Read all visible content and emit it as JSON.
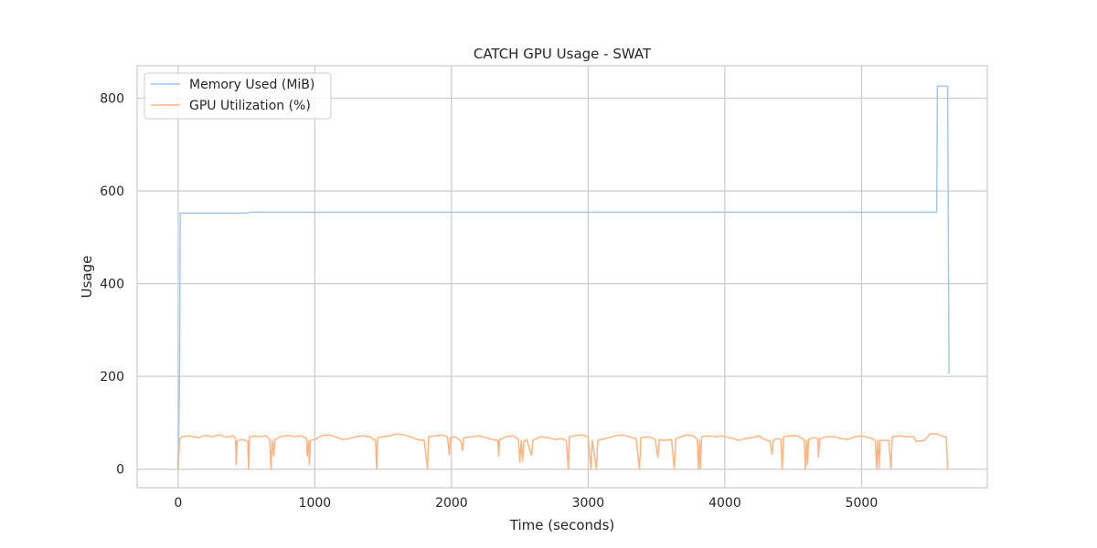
{
  "chart_data": {
    "type": "line",
    "title": "CATCH GPU Usage - SWAT",
    "xlabel": "Time (seconds)",
    "ylabel": "Usage",
    "xlim": [
      -300,
      5920
    ],
    "ylim": [
      -40,
      870
    ],
    "xticks": [
      0,
      1000,
      2000,
      3000,
      4000,
      5000
    ],
    "yticks": [
      0,
      200,
      400,
      600,
      800
    ],
    "grid": true,
    "legend_position": "top-left",
    "series": [
      {
        "name": "Memory Used (MiB)",
        "color": "#a1c9f4",
        "points": [
          [
            0,
            0
          ],
          [
            10,
            200
          ],
          [
            15,
            552
          ],
          [
            500,
            552
          ],
          [
            520,
            554
          ],
          [
            5550,
            554
          ],
          [
            5555,
            826
          ],
          [
            5630,
            826
          ],
          [
            5640,
            206
          ]
        ]
      },
      {
        "name": "GPU Utilization (%)",
        "color": "#ffb482",
        "points": [
          [
            0,
            0
          ],
          [
            10,
            65
          ],
          [
            30,
            70
          ],
          [
            80,
            72
          ],
          [
            150,
            68
          ],
          [
            200,
            73
          ],
          [
            250,
            70
          ],
          [
            300,
            74
          ],
          [
            350,
            69
          ],
          [
            400,
            72
          ],
          [
            420,
            66
          ],
          [
            425,
            10
          ],
          [
            432,
            60
          ],
          [
            440,
            62
          ],
          [
            470,
            64
          ],
          [
            490,
            62
          ],
          [
            510,
            60
          ],
          [
            515,
            0
          ],
          [
            522,
            70
          ],
          [
            560,
            72
          ],
          [
            600,
            70
          ],
          [
            640,
            72
          ],
          [
            670,
            65
          ],
          [
            680,
            0
          ],
          [
            688,
            62
          ],
          [
            700,
            28
          ],
          [
            708,
            64
          ],
          [
            750,
            70
          ],
          [
            800,
            73
          ],
          [
            850,
            70
          ],
          [
            900,
            72
          ],
          [
            940,
            66
          ],
          [
            945,
            28
          ],
          [
            955,
            62
          ],
          [
            960,
            10
          ],
          [
            968,
            62
          ],
          [
            1000,
            64
          ],
          [
            1050,
            72
          ],
          [
            1100,
            74
          ],
          [
            1150,
            70
          ],
          [
            1200,
            64
          ],
          [
            1250,
            66
          ],
          [
            1300,
            70
          ],
          [
            1350,
            72
          ],
          [
            1400,
            70
          ],
          [
            1445,
            62
          ],
          [
            1452,
            0
          ],
          [
            1460,
            68
          ],
          [
            1500,
            70
          ],
          [
            1550,
            72
          ],
          [
            1600,
            76
          ],
          [
            1650,
            74
          ],
          [
            1700,
            70
          ],
          [
            1750,
            64
          ],
          [
            1800,
            62
          ],
          [
            1825,
            0
          ],
          [
            1832,
            70
          ],
          [
            1880,
            72
          ],
          [
            1930,
            74
          ],
          [
            1970,
            70
          ],
          [
            1985,
            30
          ],
          [
            1992,
            68
          ],
          [
            2030,
            70
          ],
          [
            2070,
            60
          ],
          [
            2080,
            40
          ],
          [
            2090,
            68
          ],
          [
            2150,
            70
          ],
          [
            2200,
            72
          ],
          [
            2250,
            68
          ],
          [
            2300,
            64
          ],
          [
            2340,
            62
          ],
          [
            2345,
            28
          ],
          [
            2352,
            64
          ],
          [
            2400,
            70
          ],
          [
            2450,
            72
          ],
          [
            2490,
            64
          ],
          [
            2500,
            15
          ],
          [
            2510,
            62
          ],
          [
            2520,
            18
          ],
          [
            2530,
            60
          ],
          [
            2550,
            64
          ],
          [
            2585,
            30
          ],
          [
            2595,
            62
          ],
          [
            2650,
            70
          ],
          [
            2700,
            68
          ],
          [
            2760,
            64
          ],
          [
            2800,
            66
          ],
          [
            2840,
            62
          ],
          [
            2855,
            0
          ],
          [
            2862,
            70
          ],
          [
            2900,
            72
          ],
          [
            2950,
            74
          ],
          [
            3000,
            70
          ],
          [
            3020,
            0
          ],
          [
            3030,
            62
          ],
          [
            3060,
            0
          ],
          [
            3070,
            62
          ],
          [
            3150,
            68
          ],
          [
            3200,
            72
          ],
          [
            3250,
            74
          ],
          [
            3300,
            70
          ],
          [
            3350,
            66
          ],
          [
            3375,
            0
          ],
          [
            3385,
            68
          ],
          [
            3440,
            70
          ],
          [
            3490,
            64
          ],
          [
            3510,
            25
          ],
          [
            3520,
            64
          ],
          [
            3560,
            62
          ],
          [
            3610,
            64
          ],
          [
            3630,
            0
          ],
          [
            3640,
            66
          ],
          [
            3680,
            70
          ],
          [
            3720,
            74
          ],
          [
            3770,
            72
          ],
          [
            3800,
            64
          ],
          [
            3805,
            0
          ],
          [
            3815,
            62
          ],
          [
            3820,
            0
          ],
          [
            3830,
            70
          ],
          [
            3880,
            72
          ],
          [
            3930,
            70
          ],
          [
            3980,
            72
          ],
          [
            4000,
            70
          ],
          [
            4060,
            66
          ],
          [
            4100,
            62
          ],
          [
            4150,
            66
          ],
          [
            4200,
            68
          ],
          [
            4250,
            72
          ],
          [
            4290,
            64
          ],
          [
            4330,
            60
          ],
          [
            4345,
            32
          ],
          [
            4355,
            62
          ],
          [
            4380,
            66
          ],
          [
            4410,
            64
          ],
          [
            4420,
            0
          ],
          [
            4430,
            70
          ],
          [
            4480,
            72
          ],
          [
            4530,
            72
          ],
          [
            4580,
            64
          ],
          [
            4590,
            0
          ],
          [
            4598,
            62
          ],
          [
            4605,
            10
          ],
          [
            4612,
            64
          ],
          [
            4650,
            68
          ],
          [
            4680,
            66
          ],
          [
            4685,
            26
          ],
          [
            4695,
            66
          ],
          [
            4750,
            70
          ],
          [
            4800,
            70
          ],
          [
            4850,
            66
          ],
          [
            4900,
            64
          ],
          [
            4950,
            70
          ],
          [
            5000,
            72
          ],
          [
            5080,
            66
          ],
          [
            5100,
            62
          ],
          [
            5110,
            0
          ],
          [
            5118,
            62
          ],
          [
            5128,
            0
          ],
          [
            5135,
            62
          ],
          [
            5200,
            62
          ],
          [
            5215,
            0
          ],
          [
            5225,
            70
          ],
          [
            5280,
            72
          ],
          [
            5330,
            70
          ],
          [
            5380,
            70
          ],
          [
            5400,
            60
          ],
          [
            5460,
            62
          ],
          [
            5500,
            76
          ],
          [
            5550,
            76
          ],
          [
            5600,
            70
          ],
          [
            5620,
            70
          ],
          [
            5630,
            0
          ]
        ]
      }
    ]
  }
}
